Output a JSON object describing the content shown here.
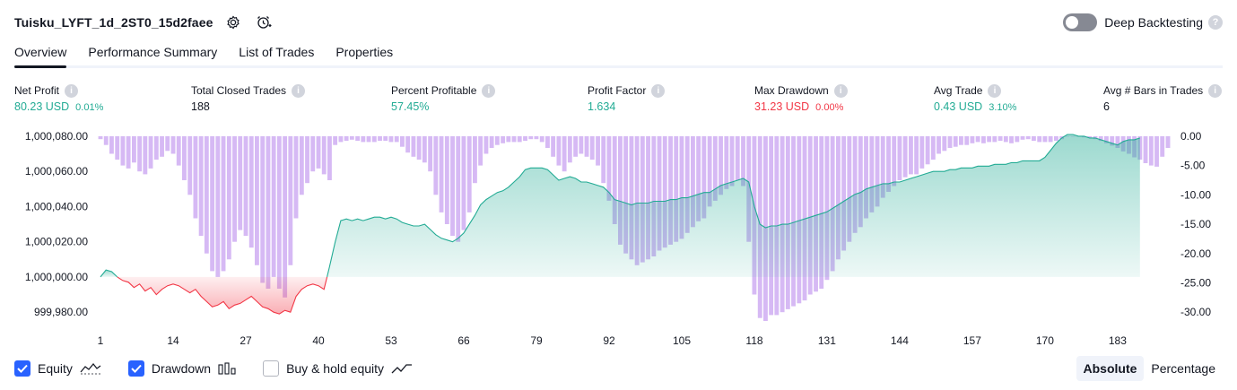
{
  "header": {
    "title": "Tuisku_LYFT_1d_2ST0_15d2faee",
    "settings_icon": "gear-icon",
    "alert_icon": "alarm-add-icon"
  },
  "deep_backtesting": {
    "label": "Deep Backtesting",
    "enabled": false,
    "help_icon": "question-icon"
  },
  "tabs": [
    "Overview",
    "Performance Summary",
    "List of Trades",
    "Properties"
  ],
  "metrics": [
    {
      "label": "Net Profit",
      "value": "80.23 USD",
      "pct": "0.01%",
      "color": "#22ab94"
    },
    {
      "label": "Total Closed Trades",
      "value": "188",
      "pct": "",
      "color": "#131722"
    },
    {
      "label": "Percent Profitable",
      "value": "57.45%",
      "pct": "",
      "color": "#22ab94"
    },
    {
      "label": "Profit Factor",
      "value": "1.634",
      "pct": "",
      "color": "#22ab94"
    },
    {
      "label": "Max Drawdown",
      "value": "31.23 USD",
      "pct": "0.00%",
      "color": "#f23645"
    },
    {
      "label": "Avg Trade",
      "value": "0.43 USD",
      "pct": "3.10%",
      "color": "#22ab94"
    },
    {
      "label": "Avg # Bars in Trades",
      "value": "6",
      "pct": "",
      "color": "#131722"
    }
  ],
  "chart_data": {
    "type": "area",
    "x_ticks": [
      "1",
      "14",
      "27",
      "40",
      "53",
      "66",
      "79",
      "92",
      "105",
      "118",
      "131",
      "144",
      "157",
      "170",
      "183"
    ],
    "y_left_ticks": [
      "1,000,080.00",
      "1,000,060.00",
      "1,000,040.00",
      "1,000,020.00",
      "1,000,000.00",
      "999,980.00"
    ],
    "y_right_ticks": [
      "0.00",
      "-5.00",
      "-10.00",
      "-15.00",
      "-20.00",
      "-25.00",
      "-30.00"
    ],
    "ylim_left": [
      999975,
      1000082
    ],
    "ylim_right": [
      -31.5,
      0.6
    ],
    "baseline": 1000000,
    "equity_points": [
      [
        1,
        1000000
      ],
      [
        2,
        1000004
      ],
      [
        3,
        1000003
      ],
      [
        4,
        1000000
      ],
      [
        5,
        999998
      ],
      [
        6,
        999997
      ],
      [
        7,
        999994
      ],
      [
        8,
        999996
      ],
      [
        9,
        999992
      ],
      [
        10,
        999994
      ],
      [
        11,
        999990
      ],
      [
        12,
        999993
      ],
      [
        13,
        999995
      ],
      [
        14,
        999996
      ],
      [
        15,
        999995
      ],
      [
        16,
        999993
      ],
      [
        17,
        999991
      ],
      [
        18,
        999993
      ],
      [
        19,
        999989
      ],
      [
        20,
        999986
      ],
      [
        21,
        999983
      ],
      [
        22,
        999984
      ],
      [
        23,
        999986
      ],
      [
        24,
        999982
      ],
      [
        25,
        999984
      ],
      [
        26,
        999985
      ],
      [
        27,
        999987
      ],
      [
        28,
        999989
      ],
      [
        29,
        999986
      ],
      [
        30,
        999983
      ],
      [
        31,
        999982
      ],
      [
        32,
        999980
      ],
      [
        33,
        999979
      ],
      [
        34,
        999981
      ],
      [
        35,
        999980
      ],
      [
        36,
        999989
      ],
      [
        37,
        999993
      ],
      [
        38,
        999995
      ],
      [
        39,
        999996
      ],
      [
        40,
        999995
      ],
      [
        41,
        999993
      ],
      [
        42,
        1000006
      ],
      [
        43,
        1000020
      ],
      [
        44,
        1000032
      ],
      [
        45,
        1000033
      ],
      [
        46,
        1000032
      ],
      [
        47,
        1000033
      ],
      [
        48,
        1000032
      ],
      [
        49,
        1000033
      ],
      [
        50,
        1000034
      ],
      [
        51,
        1000034
      ],
      [
        52,
        1000033
      ],
      [
        53,
        1000034
      ],
      [
        54,
        1000033
      ],
      [
        55,
        1000031
      ],
      [
        56,
        1000030
      ],
      [
        57,
        1000029
      ],
      [
        58,
        1000029
      ],
      [
        59,
        1000030
      ],
      [
        60,
        1000027
      ],
      [
        61,
        1000024
      ],
      [
        62,
        1000022
      ],
      [
        63,
        1000021
      ],
      [
        64,
        1000020
      ],
      [
        65,
        1000022
      ],
      [
        66,
        1000025
      ],
      [
        67,
        1000030
      ],
      [
        68,
        1000035
      ],
      [
        69,
        1000041
      ],
      [
        70,
        1000044
      ],
      [
        71,
        1000046
      ],
      [
        72,
        1000048
      ],
      [
        73,
        1000049
      ],
      [
        74,
        1000051
      ],
      [
        75,
        1000054
      ],
      [
        76,
        1000057
      ],
      [
        77,
        1000061
      ],
      [
        78,
        1000062
      ],
      [
        79,
        1000062
      ],
      [
        80,
        1000062
      ],
      [
        81,
        1000061
      ],
      [
        82,
        1000058
      ],
      [
        83,
        1000055
      ],
      [
        84,
        1000056
      ],
      [
        85,
        1000057
      ],
      [
        86,
        1000056
      ],
      [
        87,
        1000054
      ],
      [
        88,
        1000054
      ],
      [
        89,
        1000053
      ],
      [
        90,
        1000052
      ],
      [
        91,
        1000051
      ],
      [
        92,
        1000048
      ],
      [
        93,
        1000044
      ],
      [
        94,
        1000043
      ],
      [
        95,
        1000042
      ],
      [
        96,
        1000041
      ],
      [
        97,
        1000042
      ],
      [
        98,
        1000042
      ],
      [
        99,
        1000042
      ],
      [
        100,
        1000043
      ],
      [
        101,
        1000043
      ],
      [
        102,
        1000043
      ],
      [
        103,
        1000044
      ],
      [
        104,
        1000044
      ],
      [
        105,
        1000045
      ],
      [
        106,
        1000045
      ],
      [
        107,
        1000046
      ],
      [
        108,
        1000047
      ],
      [
        109,
        1000048
      ],
      [
        110,
        1000048
      ],
      [
        111,
        1000050
      ],
      [
        112,
        1000052
      ],
      [
        113,
        1000053
      ],
      [
        114,
        1000054
      ],
      [
        115,
        1000055
      ],
      [
        116,
        1000056
      ],
      [
        117,
        1000054
      ],
      [
        118,
        1000040
      ],
      [
        119,
        1000030
      ],
      [
        120,
        1000028
      ],
      [
        121,
        1000029
      ],
      [
        122,
        1000029
      ],
      [
        123,
        1000030
      ],
      [
        124,
        1000030
      ],
      [
        125,
        1000031
      ],
      [
        126,
        1000032
      ],
      [
        127,
        1000033
      ],
      [
        128,
        1000034
      ],
      [
        129,
        1000035
      ],
      [
        130,
        1000036
      ],
      [
        131,
        1000037
      ],
      [
        132,
        1000039
      ],
      [
        133,
        1000041
      ],
      [
        134,
        1000043
      ],
      [
        135,
        1000045
      ],
      [
        136,
        1000047
      ],
      [
        137,
        1000048
      ],
      [
        138,
        1000050
      ],
      [
        139,
        1000051
      ],
      [
        140,
        1000052
      ],
      [
        141,
        1000053
      ],
      [
        142,
        1000053
      ],
      [
        143,
        1000054
      ],
      [
        144,
        1000054
      ],
      [
        145,
        1000055
      ],
      [
        146,
        1000056
      ],
      [
        147,
        1000057
      ],
      [
        148,
        1000058
      ],
      [
        149,
        1000059
      ],
      [
        150,
        1000060
      ],
      [
        151,
        1000060
      ],
      [
        152,
        1000060
      ],
      [
        153,
        1000061
      ],
      [
        154,
        1000061
      ],
      [
        155,
        1000062
      ],
      [
        156,
        1000062
      ],
      [
        157,
        1000062
      ],
      [
        158,
        1000063
      ],
      [
        159,
        1000063
      ],
      [
        160,
        1000063
      ],
      [
        161,
        1000064
      ],
      [
        162,
        1000064
      ],
      [
        163,
        1000064
      ],
      [
        164,
        1000065
      ],
      [
        165,
        1000065
      ],
      [
        166,
        1000066
      ],
      [
        167,
        1000066
      ],
      [
        168,
        1000066
      ],
      [
        169,
        1000066
      ],
      [
        170,
        1000068
      ],
      [
        171,
        1000072
      ],
      [
        172,
        1000076
      ],
      [
        173,
        1000079
      ],
      [
        174,
        1000081
      ],
      [
        175,
        1000081
      ],
      [
        176,
        1000080
      ],
      [
        177,
        1000080
      ],
      [
        178,
        1000079
      ],
      [
        179,
        1000079
      ],
      [
        180,
        1000078
      ],
      [
        181,
        1000077
      ],
      [
        182,
        1000076
      ],
      [
        183,
        1000075
      ],
      [
        184,
        1000077
      ],
      [
        185,
        1000078
      ],
      [
        186,
        1000078
      ],
      [
        187,
        1000079
      ]
    ],
    "drawdown_values": [
      -0.5,
      -1.5,
      -3,
      -4,
      -5,
      -5.5,
      -4.5,
      -6,
      -6.5,
      -5.5,
      -4,
      -3.5,
      -2.5,
      -3,
      -5,
      -7.5,
      -10,
      -14,
      -17,
      -20,
      -23,
      -24,
      -23,
      -21,
      -18,
      -16,
      -17,
      -19,
      -22,
      -25,
      -26,
      -24,
      -26,
      -27.5,
      -22,
      -14,
      -10,
      -8,
      -6,
      -5.5,
      -6.5,
      -7.5,
      -1.5,
      -1,
      -0.8,
      -0.6,
      -0.8,
      -1,
      -1,
      -1,
      -0.8,
      -0.8,
      -1,
      -1,
      -1.8,
      -2.8,
      -3.5,
      -4,
      -4.5,
      -6,
      -10,
      -13,
      -15,
      -17,
      -18,
      -16,
      -13,
      -8,
      -5,
      -3,
      -2,
      -1.5,
      -1.2,
      -1,
      -1,
      -1,
      -0.8,
      -0.5,
      -0.5,
      -1,
      -2,
      -3.5,
      -5,
      -6,
      -4.5,
      -3.5,
      -3,
      -3.5,
      -4,
      -5,
      -8,
      -11,
      -15,
      -18.5,
      -20,
      -21,
      -22,
      -21.5,
      -21,
      -20.5,
      -19.5,
      -19,
      -18.5,
      -18,
      -17.5,
      -16.5,
      -15.5,
      -14.5,
      -14,
      -12,
      -11,
      -10,
      -9,
      -8.5,
      -7.5,
      -8.5,
      -18,
      -27,
      -31,
      -31.5,
      -30.5,
      -30.5,
      -30,
      -29.5,
      -29,
      -28.5,
      -28,
      -27,
      -26.5,
      -26,
      -24.5,
      -23,
      -21,
      -19.5,
      -18,
      -16.5,
      -15.5,
      -14,
      -13,
      -12,
      -10.5,
      -9.5,
      -8.5,
      -7.5,
      -7,
      -6.5,
      -6.5,
      -5.5,
      -4.8,
      -4,
      -3,
      -2.5,
      -2,
      -1.8,
      -1.5,
      -1.5,
      -1.2,
      -1,
      -1.2,
      -1,
      -1,
      -0.8,
      -1,
      -1.2,
      -1,
      -0.6,
      -0.5,
      -0.8,
      -1,
      -1,
      -1,
      -0.8,
      -0.5,
      0,
      0,
      0,
      -0.2,
      -0.3,
      -0.5,
      -0.8,
      -1.2,
      -1.6,
      -2,
      -2.6,
      -3,
      -3.6,
      -4,
      -4.6,
      -5,
      -5.2,
      -3.5,
      -2
    ]
  },
  "legend": [
    {
      "label": "Equity",
      "checked": true,
      "icon": "equity-line-icon"
    },
    {
      "label": "Drawdown",
      "checked": true,
      "icon": "drawdown-bars-icon"
    },
    {
      "label": "Buy & hold equity",
      "checked": false,
      "icon": "buyhold-line-icon"
    }
  ],
  "modes": [
    "Absolute",
    "Percentage"
  ],
  "active_mode": "Absolute",
  "colors": {
    "accent": "#2962ff",
    "positive": "#22ab94",
    "negative": "#f23645",
    "drawdown": "#c8a2f0"
  }
}
